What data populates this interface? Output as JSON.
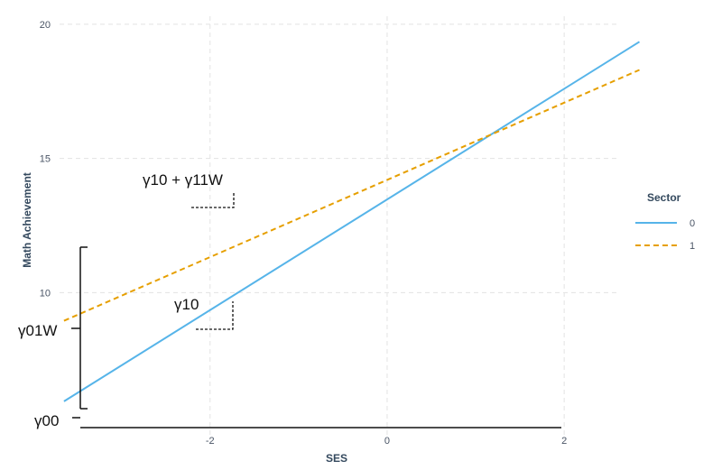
{
  "chart_data": {
    "type": "line",
    "xlabel": "SES",
    "ylabel": "Math Achievement",
    "xlim": [
      -3.7,
      2.6
    ],
    "ylim": [
      4.5,
      20.3
    ],
    "x_ticks": [
      -2,
      0,
      2
    ],
    "x_tick_labels": [
      "-2",
      "0",
      "2"
    ],
    "y_ticks": [
      10,
      15,
      20
    ],
    "y_tick_labels": [
      "10",
      "15",
      "20"
    ],
    "grid": true,
    "legend": {
      "title": "Sector",
      "placement": "right",
      "entries": [
        "0",
        "1"
      ]
    },
    "series": [
      {
        "name": "0",
        "color": "#56b4e9",
        "dash": "solid",
        "x": [
          -3.65,
          2.85
        ],
        "y": [
          5.95,
          19.35
        ]
      },
      {
        "name": "1",
        "color": "#e69f00",
        "dash": "dashed",
        "x": [
          -3.65,
          2.85
        ],
        "y": [
          8.95,
          18.3
        ]
      }
    ],
    "annotations": {
      "slope_top": "γ10 + γ11W",
      "slope_bottom": "γ10",
      "y_left_mid": "γ01W",
      "y_left_bottom": "γ00"
    }
  },
  "colors": {
    "grid": "#e3e3e3",
    "axis": "#111111",
    "annotation": "#111111"
  }
}
